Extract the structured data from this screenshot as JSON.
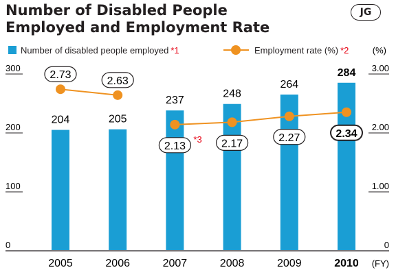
{
  "header": {
    "title": "Number of Disabled People Employed and Employment Rate",
    "badge": "JG"
  },
  "chart_data": {
    "type": "bar+line",
    "x": [
      "2005",
      "2006",
      "2007",
      "2008",
      "2009",
      "2010"
    ],
    "x_unit": "(FY)",
    "highlight_category": "2010",
    "series": [
      {
        "name": "Number of disabled people employed",
        "note": "*1",
        "type": "bar",
        "axis": "left",
        "values": [
          204,
          205,
          237,
          248,
          264,
          284
        ],
        "labels": [
          "204",
          "205",
          "237",
          "248",
          "264",
          "284"
        ],
        "color": "#1a9ed4"
      },
      {
        "name": "Employment rate (%)",
        "note": "*2",
        "type": "line",
        "axis": "right",
        "values": [
          2.73,
          2.63,
          2.13,
          2.17,
          2.27,
          2.34
        ],
        "labels": [
          "2.73",
          "2.63",
          "2.13",
          "2.17",
          "2.27",
          "2.34"
        ],
        "segments": [
          [
            0,
            1
          ],
          [
            2,
            5
          ]
        ],
        "color": "#ef9221"
      }
    ],
    "point_notes": [
      {
        "index": 2,
        "text": "*3"
      }
    ],
    "left_axis": {
      "ylim": [
        0,
        300
      ],
      "ticks": [
        "0",
        "100",
        "200",
        "300"
      ]
    },
    "right_axis": {
      "unit": "(%)",
      "ylim": [
        0,
        3
      ],
      "ticks": [
        "0",
        "1.00",
        "2.00",
        "3.00"
      ]
    },
    "note_color": "#e60012"
  }
}
